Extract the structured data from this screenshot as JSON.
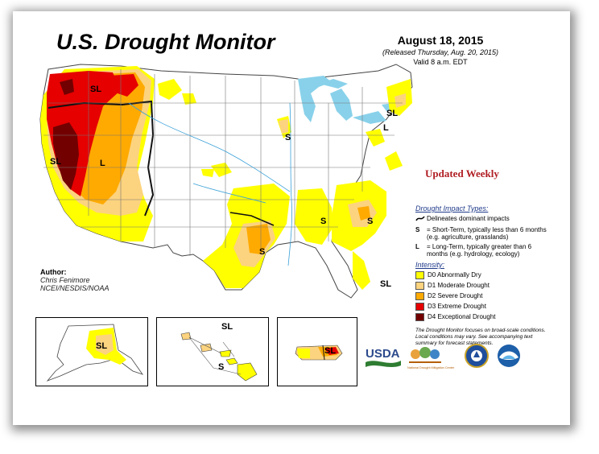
{
  "title": "U.S. Drought Monitor",
  "date": "August 18, 2015",
  "released": "(Released Thursday, Aug. 20, 2015)",
  "valid": "Valid 8 a.m. EDT",
  "updated": "Updated Weekly",
  "legend": {
    "impact_header": "Drought Impact Types:",
    "delineates": "Delineates dominant impacts",
    "s_symbol": "S",
    "s_desc": "= Short-Term, typically less than 6 months (e.g. agriculture, grasslands)",
    "l_symbol": "L",
    "l_desc": "= Long-Term, typically greater than 6 months (e.g. hydrology, ecology)",
    "intensity_header": "Intensity:",
    "items": [
      {
        "label": "D0 Abnormally Dry",
        "color": "#ffff00"
      },
      {
        "label": "D1 Moderate Drought",
        "color": "#fcd37f"
      },
      {
        "label": "D2 Severe Drought",
        "color": "#ffaa00"
      },
      {
        "label": "D3 Extreme Drought",
        "color": "#e60000"
      },
      {
        "label": "D4 Exceptional Drought",
        "color": "#730000"
      }
    ],
    "note": "The Drought Monitor focuses on broad-scale conditions. Local conditions may vary. See accompanying text summary for forecast statements."
  },
  "author": {
    "label": "Author:",
    "name": "Chris Fenimore",
    "org": "NCEI/NESDIS/NOAA"
  },
  "map_labels": {
    "sl_nw": "SL",
    "sl_ca": "SL",
    "l_nv": "L",
    "s_tx": "S",
    "s_ms": "S",
    "s_sc": "S",
    "s_il": "S",
    "sl_ne": "SL",
    "l_ne": "L",
    "sl_fl": "SL",
    "sl_ak": "SL",
    "sl_hi": "SL",
    "s_hi": "S",
    "sl_pr": "SL"
  },
  "logos": {
    "usda": "USDA",
    "ndmc": "National Drought Mitigation Center"
  }
}
